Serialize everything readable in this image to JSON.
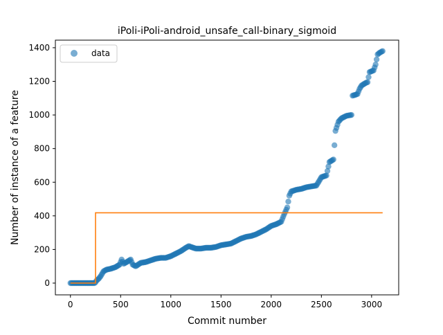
{
  "chart_data": {
    "type": "scatter",
    "title": "iPoli-iPoli-android_unsafe_call-binary_sigmoid",
    "xlabel": "Commit number",
    "ylabel": "Number of instance of a feature",
    "xlim": [
      -150,
      3270
    ],
    "ylim": [
      -70,
      1445
    ],
    "xticks": [
      0,
      500,
      1000,
      1500,
      2000,
      2500,
      3000
    ],
    "yticks": [
      0,
      200,
      400,
      600,
      800,
      1000,
      1200,
      1400
    ],
    "legend": {
      "position": "top-left",
      "entries": [
        "data"
      ]
    },
    "series": [
      {
        "name": "data",
        "kind": "scatter",
        "color": "#1f77b4",
        "anchors": [
          [
            0,
            0
          ],
          [
            240,
            0
          ],
          [
            250,
            5
          ],
          [
            260,
            15
          ],
          [
            280,
            25
          ],
          [
            300,
            40
          ],
          [
            330,
            70
          ],
          [
            360,
            80
          ],
          [
            400,
            85
          ],
          [
            450,
            95
          ],
          [
            490,
            110
          ],
          [
            510,
            140
          ],
          [
            530,
            115
          ],
          [
            560,
            125
          ],
          [
            600,
            140
          ],
          [
            620,
            110
          ],
          [
            650,
            100
          ],
          [
            700,
            120
          ],
          [
            750,
            125
          ],
          [
            800,
            135
          ],
          [
            850,
            145
          ],
          [
            900,
            150
          ],
          [
            950,
            150
          ],
          [
            1000,
            160
          ],
          [
            1050,
            175
          ],
          [
            1100,
            190
          ],
          [
            1150,
            210
          ],
          [
            1180,
            220
          ],
          [
            1200,
            215
          ],
          [
            1250,
            205
          ],
          [
            1300,
            205
          ],
          [
            1350,
            210
          ],
          [
            1400,
            210
          ],
          [
            1450,
            215
          ],
          [
            1500,
            225
          ],
          [
            1550,
            230
          ],
          [
            1600,
            235
          ],
          [
            1650,
            250
          ],
          [
            1700,
            265
          ],
          [
            1750,
            275
          ],
          [
            1800,
            280
          ],
          [
            1850,
            290
          ],
          [
            1900,
            305
          ],
          [
            1950,
            320
          ],
          [
            2000,
            340
          ],
          [
            2050,
            350
          ],
          [
            2100,
            365
          ],
          [
            2130,
            410
          ],
          [
            2160,
            450
          ],
          [
            2180,
            520
          ],
          [
            2200,
            545
          ],
          [
            2250,
            555
          ],
          [
            2300,
            560
          ],
          [
            2350,
            570
          ],
          [
            2400,
            575
          ],
          [
            2450,
            580
          ],
          [
            2480,
            610
          ],
          [
            2500,
            630
          ],
          [
            2550,
            640
          ],
          [
            2580,
            720
          ],
          [
            2620,
            735
          ],
          [
            2640,
            905
          ],
          [
            2670,
            960
          ],
          [
            2700,
            980
          ],
          [
            2750,
            995
          ],
          [
            2800,
            1000
          ],
          [
            2810,
            1115
          ],
          [
            2840,
            1120
          ],
          [
            2860,
            1125
          ],
          [
            2880,
            1155
          ],
          [
            2900,
            1175
          ],
          [
            2940,
            1190
          ],
          [
            2960,
            1195
          ],
          [
            2980,
            1255
          ],
          [
            3020,
            1265
          ],
          [
            3040,
            1300
          ],
          [
            3060,
            1360
          ],
          [
            3080,
            1370
          ],
          [
            3110,
            1380
          ]
        ]
      },
      {
        "name": "",
        "kind": "line",
        "color": "#ff7f0e",
        "points": [
          [
            0,
            0
          ],
          [
            250,
            0
          ],
          [
            250,
            418
          ],
          [
            3110,
            418
          ]
        ]
      }
    ]
  }
}
